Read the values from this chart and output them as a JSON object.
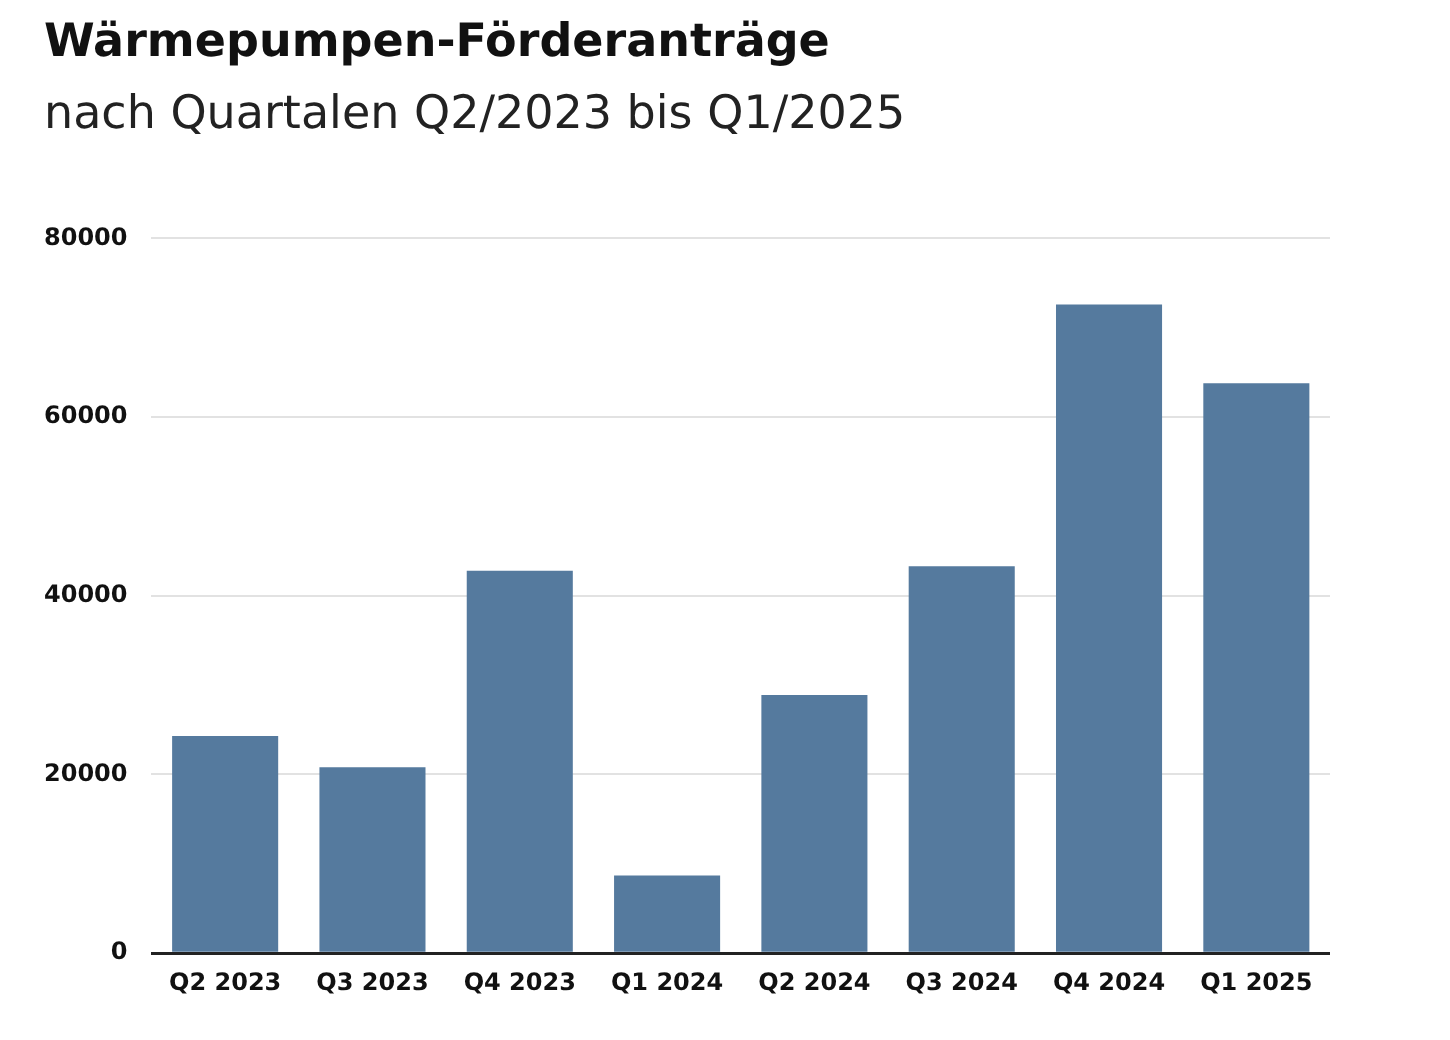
{
  "chart_data": {
    "type": "bar",
    "title": "Wärmepumpen-Förderanträge",
    "subtitle": "nach Quartalen Q2/2023 bis Q1/2025",
    "categories": [
      "Q2 2023",
      "Q3 2023",
      "Q4 2023",
      "Q1 2024",
      "Q2 2024",
      "Q3 2024",
      "Q4 2024",
      "Q1 2025"
    ],
    "values": [
      24300,
      20800,
      42800,
      8700,
      28900,
      43300,
      72600,
      63800
    ],
    "color": "#557a9e",
    "ylim": [
      0,
      80000
    ],
    "yticks": [
      0,
      20000,
      40000,
      60000,
      80000
    ],
    "grid": "y"
  }
}
